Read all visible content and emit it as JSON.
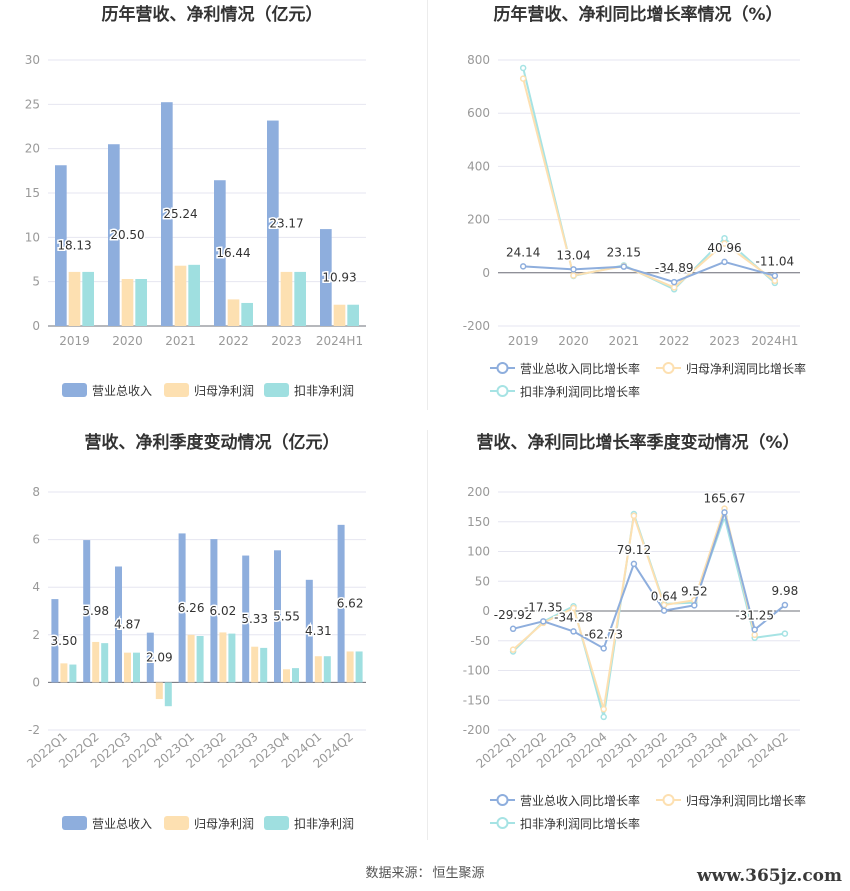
{
  "footer": {
    "source_label": "数据来源：",
    "source": "恒生聚源"
  },
  "watermark": "www.365jz.com",
  "colors": {
    "revenue": "#8eaedd",
    "net_profit": "#fde0b1",
    "deducted_profit": "#9fdfe0",
    "grid": "#e6e6f0",
    "axis": "#999999",
    "label": "#333333"
  },
  "chart_data": [
    {
      "id": "annual_values",
      "type": "bar",
      "title": "历年营收、净利情况（亿元）",
      "categories": [
        "2019",
        "2020",
        "2021",
        "2022",
        "2023",
        "2024H1"
      ],
      "ylim": [
        0,
        30
      ],
      "yticks": [
        "0",
        "5",
        "10",
        "15",
        "20",
        "25",
        "30"
      ],
      "series": [
        {
          "name": "营业总收入",
          "values": [
            18.13,
            20.5,
            25.24,
            16.44,
            23.17,
            10.93
          ],
          "labels": [
            "18.13",
            "20.50",
            "25.24",
            "16.44",
            "23.17",
            "10.93"
          ]
        },
        {
          "name": "归母净利润",
          "values": [
            6.1,
            5.3,
            6.8,
            3.0,
            6.1,
            2.4
          ]
        },
        {
          "name": "扣非净利润",
          "values": [
            6.1,
            5.3,
            6.9,
            2.6,
            6.1,
            2.4
          ]
        }
      ],
      "legend_position": "bottom"
    },
    {
      "id": "annual_growth",
      "type": "line",
      "title": "历年营收、净利同比增长率情况（%）",
      "categories": [
        "2019",
        "2020",
        "2021",
        "2022",
        "2023",
        "2024H1"
      ],
      "ylim": [
        -200,
        800
      ],
      "yticks": [
        "-200",
        "0",
        "200",
        "400",
        "600",
        "800"
      ],
      "series": [
        {
          "name": "营业总收入同比增长率",
          "values": [
            24.14,
            13.04,
            23.15,
            -34.89,
            40.96,
            -11.04
          ],
          "labels": [
            "24.14",
            "13.04",
            "23.15",
            "-34.89",
            "40.96",
            "-11.04"
          ]
        },
        {
          "name": "归母净利润同比增长率",
          "values": [
            730,
            -10,
            25,
            -55,
            110,
            -30
          ]
        },
        {
          "name": "扣非净利润同比增长率",
          "values": [
            770,
            -12,
            28,
            -62,
            130,
            -38
          ]
        }
      ],
      "legend_position": "bottom"
    },
    {
      "id": "quarterly_values",
      "type": "bar",
      "title": "营收、净利季度变动情况（亿元）",
      "categories": [
        "2022Q1",
        "2022Q2",
        "2022Q3",
        "2022Q4",
        "2023Q1",
        "2023Q2",
        "2023Q3",
        "2023Q4",
        "2024Q1",
        "2024Q2"
      ],
      "ylim": [
        -2,
        8
      ],
      "yticks": [
        "-2",
        "0",
        "2",
        "4",
        "6",
        "8"
      ],
      "series": [
        {
          "name": "营业总收入",
          "values": [
            3.5,
            5.98,
            4.87,
            2.09,
            6.26,
            6.02,
            5.33,
            5.55,
            4.31,
            6.62
          ],
          "labels": [
            "3.50",
            "5.98",
            "4.87",
            "2.09",
            "6.26",
            "6.02",
            "5.33",
            "5.55",
            "4.31",
            "6.62"
          ]
        },
        {
          "name": "归母净利润",
          "values": [
            0.8,
            1.7,
            1.25,
            -0.7,
            2.0,
            2.1,
            1.5,
            0.55,
            1.1,
            1.3
          ]
        },
        {
          "name": "扣非净利润",
          "values": [
            0.75,
            1.65,
            1.25,
            -1.0,
            1.95,
            2.05,
            1.45,
            0.6,
            1.1,
            1.3
          ]
        }
      ],
      "legend_position": "bottom"
    },
    {
      "id": "quarterly_growth",
      "type": "line",
      "title": "营收、净利同比增长率季度变动情况（%）",
      "categories": [
        "2022Q1",
        "2022Q2",
        "2022Q3",
        "2022Q4",
        "2023Q1",
        "2023Q2",
        "2023Q3",
        "2023Q4",
        "2024Q1",
        "2024Q2"
      ],
      "ylim": [
        -200,
        200
      ],
      "yticks": [
        "-200",
        "-150",
        "-100",
        "-50",
        "0",
        "50",
        "100",
        "150",
        "200"
      ],
      "series": [
        {
          "name": "营业总收入同比增长率",
          "values": [
            -29.92,
            -17.35,
            -34.28,
            -62.73,
            79.12,
            0.64,
            9.52,
            165.67,
            -31.25,
            9.98
          ],
          "labels": [
            "-29.92",
            "-17.35",
            "-34.28",
            "-62.73",
            "79.12",
            "0.64",
            "9.52",
            "165.67",
            "-31.25",
            "9.98"
          ]
        },
        {
          "name": "归母净利润同比增长率",
          "values": [
            -65,
            -20,
            5,
            -165,
            160,
            10,
            18,
            172,
            -40,
            null
          ]
        },
        {
          "name": "扣非净利润同比增长率",
          "values": [
            -68,
            -18,
            8,
            -178,
            163,
            12,
            14,
            158,
            -45,
            -38
          ]
        }
      ],
      "legend_position": "bottom"
    }
  ]
}
